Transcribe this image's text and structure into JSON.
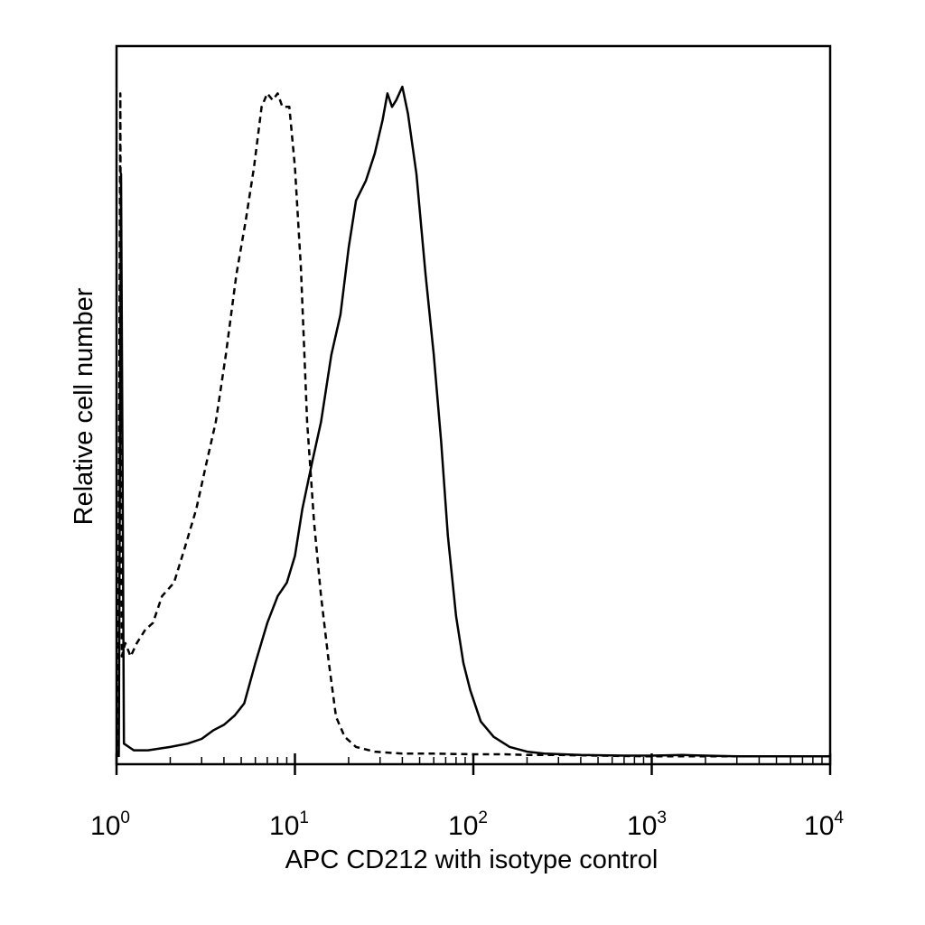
{
  "chart_data": {
    "type": "line",
    "title": "",
    "xlabel": "APC CD212 with isotype control",
    "ylabel": "Relative cell number",
    "x_scale": "log",
    "xlim": [
      1,
      10000
    ],
    "ylim": [
      0,
      1
    ],
    "grid": false,
    "legend": "none",
    "x_ticks": [
      {
        "base": "10",
        "exp": "0",
        "value": 1
      },
      {
        "base": "10",
        "exp": "1",
        "value": 10
      },
      {
        "base": "10",
        "exp": "2",
        "value": 100
      },
      {
        "base": "10",
        "exp": "3",
        "value": 1000
      },
      {
        "base": "10",
        "exp": "4",
        "value": 10000
      }
    ],
    "series": [
      {
        "style": "solid",
        "color": "#000000",
        "points": [
          [
            1.03,
            0.0
          ],
          [
            1.06,
            0.87
          ],
          [
            1.1,
            0.02
          ],
          [
            1.25,
            0.01
          ],
          [
            1.5,
            0.01
          ],
          [
            2.0,
            0.015
          ],
          [
            2.5,
            0.02
          ],
          [
            3.0,
            0.027
          ],
          [
            3.5,
            0.04
          ],
          [
            4.0,
            0.048
          ],
          [
            4.6,
            0.062
          ],
          [
            5.2,
            0.08
          ],
          [
            6.0,
            0.14
          ],
          [
            7.0,
            0.2
          ],
          [
            8.0,
            0.24
          ],
          [
            9.0,
            0.26
          ],
          [
            10.0,
            0.3
          ],
          [
            11.0,
            0.37
          ],
          [
            12.5,
            0.44
          ],
          [
            14.0,
            0.5
          ],
          [
            16.0,
            0.6
          ],
          [
            18.0,
            0.66
          ],
          [
            20.0,
            0.76
          ],
          [
            22.0,
            0.83
          ],
          [
            25.0,
            0.86
          ],
          [
            28.0,
            0.9
          ],
          [
            31.0,
            0.95
          ],
          [
            33.0,
            0.99
          ],
          [
            35.0,
            0.97
          ],
          [
            37.0,
            0.98
          ],
          [
            40.0,
            1.0
          ],
          [
            43.0,
            0.96
          ],
          [
            48.0,
            0.87
          ],
          [
            54.0,
            0.72
          ],
          [
            60.0,
            0.6
          ],
          [
            66.0,
            0.47
          ],
          [
            72.0,
            0.33
          ],
          [
            80.0,
            0.21
          ],
          [
            88.0,
            0.14
          ],
          [
            96.0,
            0.1
          ],
          [
            110.0,
            0.053
          ],
          [
            130.0,
            0.03
          ],
          [
            160.0,
            0.015
          ],
          [
            200.0,
            0.008
          ],
          [
            250.0,
            0.005
          ],
          [
            400.0,
            0.003
          ],
          [
            700.0,
            0.002
          ],
          [
            1000.0,
            0.002
          ],
          [
            1500.0,
            0.003
          ],
          [
            2000.0,
            0.002
          ],
          [
            3000.0,
            0.001
          ],
          [
            10000.0,
            0.001
          ]
        ]
      },
      {
        "style": "dashed",
        "color": "#000000",
        "points": [
          [
            1.02,
            0.0
          ],
          [
            1.05,
            0.99
          ],
          [
            1.07,
            0.15
          ],
          [
            1.12,
            0.17
          ],
          [
            1.2,
            0.15
          ],
          [
            1.3,
            0.17
          ],
          [
            1.45,
            0.19
          ],
          [
            1.6,
            0.2
          ],
          [
            1.8,
            0.24
          ],
          [
            2.1,
            0.26
          ],
          [
            2.4,
            0.31
          ],
          [
            2.8,
            0.37
          ],
          [
            3.2,
            0.44
          ],
          [
            3.6,
            0.5
          ],
          [
            4.1,
            0.6
          ],
          [
            4.7,
            0.72
          ],
          [
            5.3,
            0.8
          ],
          [
            5.9,
            0.88
          ],
          [
            6.5,
            0.97
          ],
          [
            7.0,
            0.99
          ],
          [
            7.5,
            0.98
          ],
          [
            8.0,
            0.99
          ],
          [
            8.5,
            0.97
          ],
          [
            9.3,
            0.97
          ],
          [
            10.0,
            0.88
          ],
          [
            10.8,
            0.73
          ],
          [
            11.7,
            0.5
          ],
          [
            12.8,
            0.35
          ],
          [
            14.0,
            0.24
          ],
          [
            15.5,
            0.14
          ],
          [
            17.0,
            0.06
          ],
          [
            19.0,
            0.03
          ],
          [
            22.0,
            0.015
          ],
          [
            28.0,
            0.008
          ],
          [
            40.0,
            0.005
          ],
          [
            60.0,
            0.005
          ],
          [
            100.0,
            0.004
          ],
          [
            150.0,
            0.004
          ],
          [
            200.0,
            0.003
          ],
          [
            300.0,
            0.003
          ],
          [
            500.0,
            0.002
          ],
          [
            1000.0,
            0.001
          ],
          [
            10000.0,
            0.001
          ]
        ]
      }
    ]
  }
}
